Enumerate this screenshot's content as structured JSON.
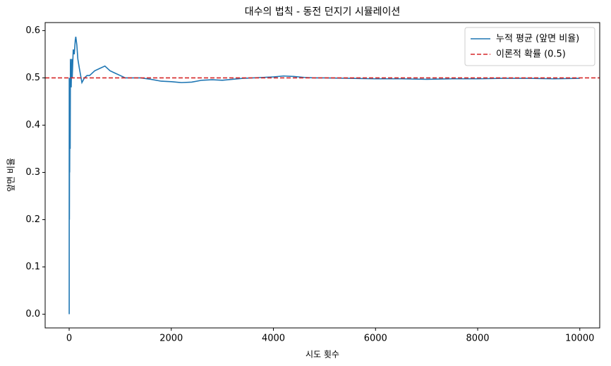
{
  "chart_data": {
    "type": "line",
    "title": "대수의 법칙 - 동전 던지기 시뮬레이션",
    "xlabel": "시도 횟수",
    "ylabel": "앞면 비율",
    "x": [
      1,
      2,
      3,
      5,
      8,
      10,
      15,
      20,
      25,
      30,
      40,
      50,
      60,
      70,
      80,
      100,
      120,
      130,
      150,
      170,
      200,
      250,
      300,
      350,
      400,
      500,
      600,
      700,
      800,
      900,
      1000,
      1100,
      1200,
      1400,
      1600,
      1800,
      2000,
      2200,
      2400,
      2600,
      2800,
      3000,
      3200,
      3400,
      3600,
      3800,
      4000,
      4200,
      4400,
      4600,
      4800,
      5000,
      5500,
      6000,
      6500,
      7000,
      7500,
      8000,
      8500,
      9000,
      9500,
      10000
    ],
    "series": [
      {
        "name": "누적 평균 (앞면 비율)",
        "color": "#1f77b4",
        "values": [
          0,
          0.5,
          0.33,
          0.2,
          0.38,
          0.3,
          0.47,
          0.35,
          0.54,
          0.5,
          0.48,
          0.54,
          0.5,
          0.53,
          0.56,
          0.55,
          0.58,
          0.587,
          0.57,
          0.54,
          0.52,
          0.49,
          0.5,
          0.505,
          0.505,
          0.515,
          0.52,
          0.525,
          0.515,
          0.51,
          0.505,
          0.5,
          0.5,
          0.5,
          0.497,
          0.493,
          0.492,
          0.49,
          0.491,
          0.495,
          0.496,
          0.495,
          0.497,
          0.499,
          0.5,
          0.501,
          0.502,
          0.504,
          0.503,
          0.501,
          0.5,
          0.5,
          0.499,
          0.498,
          0.498,
          0.497,
          0.498,
          0.498,
          0.499,
          0.499,
          0.498,
          0.499
        ]
      }
    ],
    "reference_lines": [
      {
        "name": "이론적 확률 (0.5)",
        "value": 0.5,
        "color": "#d62728",
        "style": "dashed"
      }
    ],
    "xlim": [
      -470,
      10390
    ],
    "ylim": [
      -0.029,
      0.617
    ],
    "xticks": [
      0,
      2000,
      4000,
      6000,
      8000,
      10000
    ],
    "yticks": [
      {
        "value": 0,
        "label": "0.0"
      },
      0.1,
      0.2,
      0.3,
      0.4,
      0.5,
      0.6
    ],
    "legend": "upper right"
  }
}
